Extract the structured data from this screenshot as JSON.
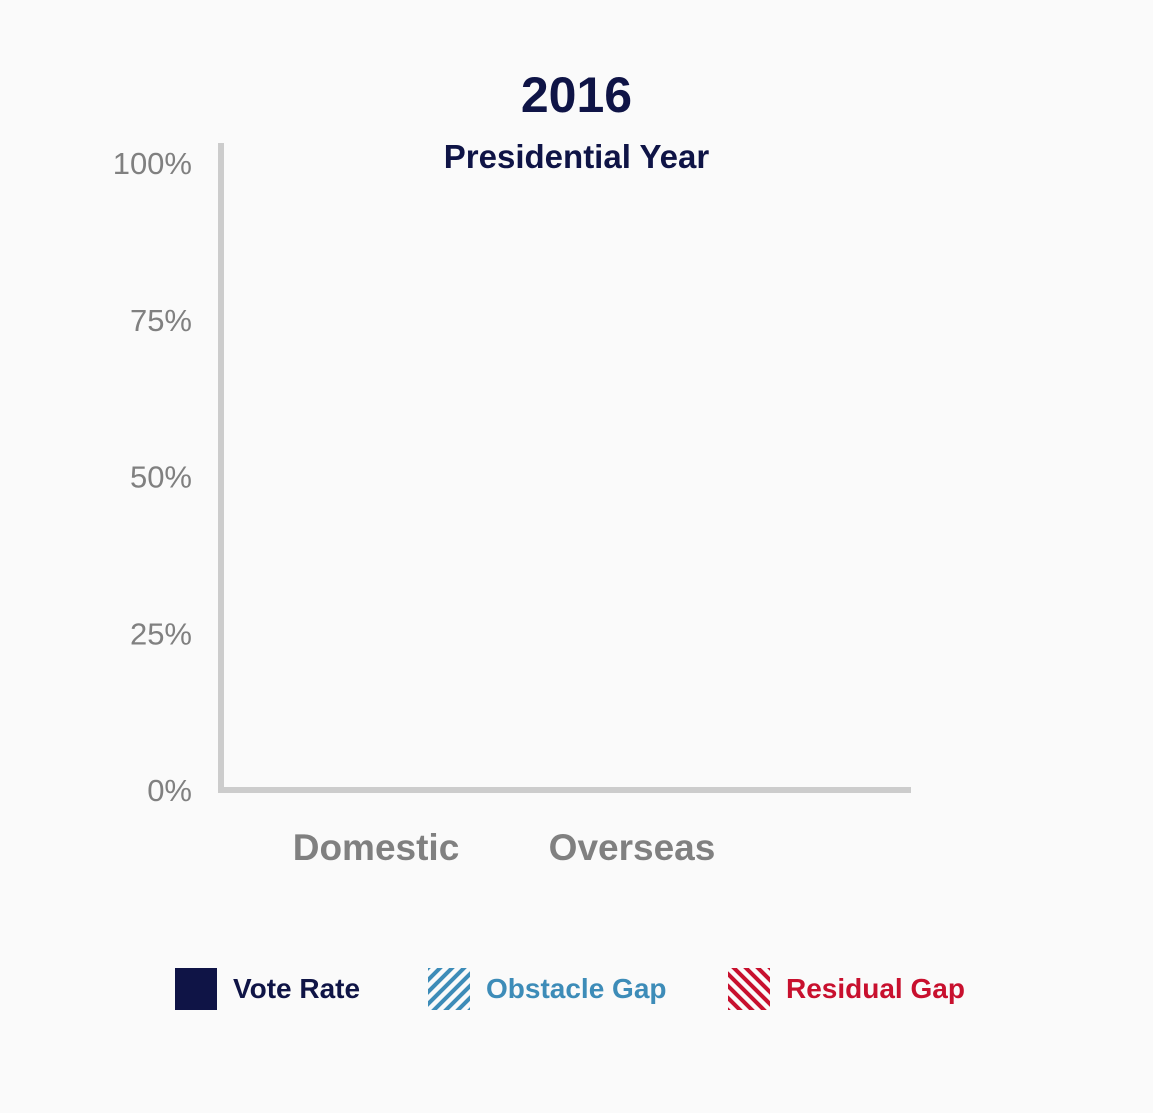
{
  "chart_data": {
    "type": "bar",
    "title": "2016",
    "subtitle": "Presidential Year",
    "categories": [
      "Domestic",
      "Overseas"
    ],
    "yticks": [
      "0%",
      "25%",
      "50%",
      "75%",
      "100%"
    ],
    "ylim": [
      0,
      100
    ],
    "series": [
      {
        "name": "Vote Rate",
        "values": [
          null,
          null
        ],
        "color": "#0f1446",
        "pattern": "solid"
      },
      {
        "name": "Obstacle Gap",
        "values": [
          null,
          null
        ],
        "color": "#3d8cb8",
        "pattern": "diagonal-stripes"
      },
      {
        "name": "Residual Gap",
        "values": [
          null,
          null
        ],
        "color": "#c8102e",
        "pattern": "diagonal-stripes-reverse"
      }
    ],
    "axis_color": "#cccccc",
    "tick_label_color": "#808080",
    "grid": false,
    "legend_position": "bottom"
  }
}
